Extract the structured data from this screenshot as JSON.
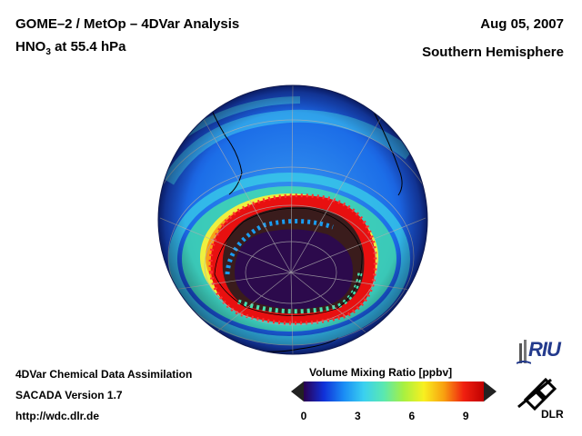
{
  "header": {
    "title": "GOME–2 / MetOp – 4DVar Analysis",
    "species": "HNO",
    "species_sub": "3",
    "level": " at 55.4 hPa",
    "date": "Aug 05, 2007",
    "hemisphere": "Southern Hemisphere"
  },
  "footer": {
    "line1": "4DVar Chemical Data Assimilation",
    "line2": "SACADA Version 1.7",
    "line3": "http://wdc.dlr.de"
  },
  "colorbar": {
    "title": "Volume Mixing Ratio [ppbv]",
    "min": 0,
    "max": 10,
    "ticks": [
      "0",
      "3",
      "6",
      "9"
    ],
    "tick_values": [
      0,
      3,
      6,
      9
    ],
    "colors": [
      "#2a0050",
      "#1030d8",
      "#1a8cf5",
      "#3ad0f0",
      "#5ae8b0",
      "#a8f040",
      "#f8f020",
      "#f8a010",
      "#f02010",
      "#c00000"
    ]
  },
  "logos": {
    "riu": "RIU",
    "dlr": "DLR"
  },
  "map": {
    "projection": "orthographic",
    "center": "South Pole",
    "vortex_fill_ppbv": 1,
    "collar_ppbv": 9.5,
    "background_ppbv": 3
  }
}
